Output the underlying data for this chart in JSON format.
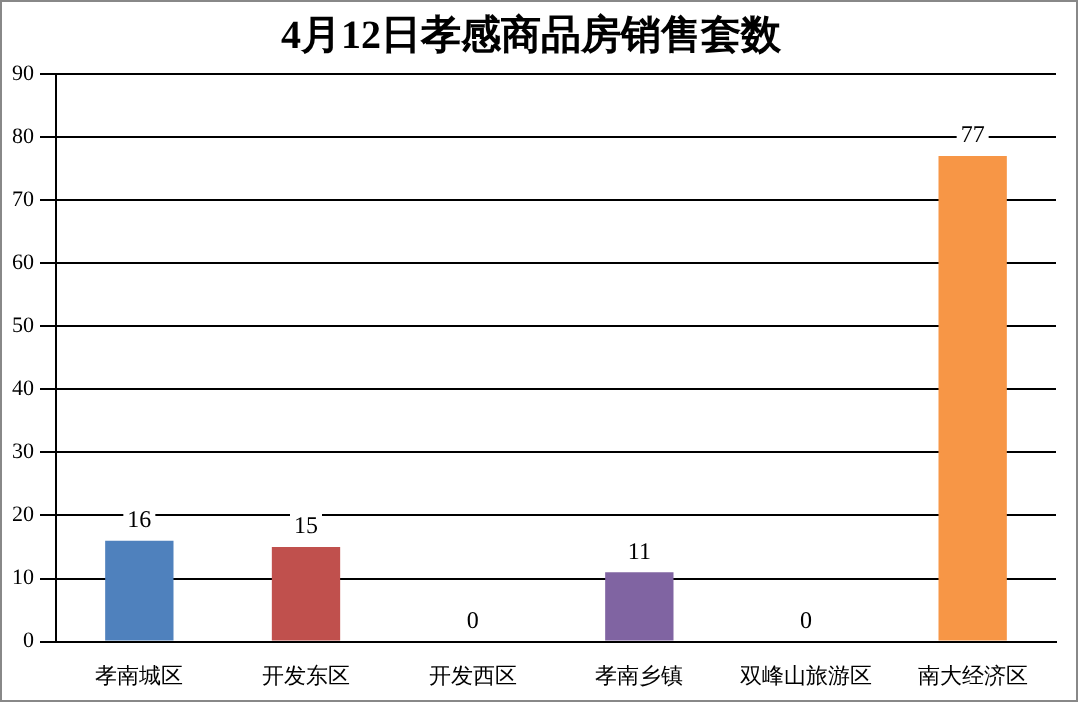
{
  "chart_data": {
    "type": "bar",
    "title": "4月12日孝感商品房销售套数",
    "categories": [
      "孝南城区",
      "开发东区",
      "开发西区",
      "孝南乡镇",
      "双峰山旅游区",
      "南大经济区"
    ],
    "values": [
      16,
      15,
      0,
      11,
      0,
      77
    ],
    "colors": [
      "#4f81bd",
      "#c0504d",
      "#9bbb59",
      "#8064a2",
      "#4bacc6",
      "#f79646"
    ],
    "ylim": [
      0,
      90
    ],
    "yticks": [
      0,
      10,
      20,
      30,
      40,
      50,
      60,
      70,
      80,
      90
    ],
    "grid": "y",
    "data_labels": true
  }
}
